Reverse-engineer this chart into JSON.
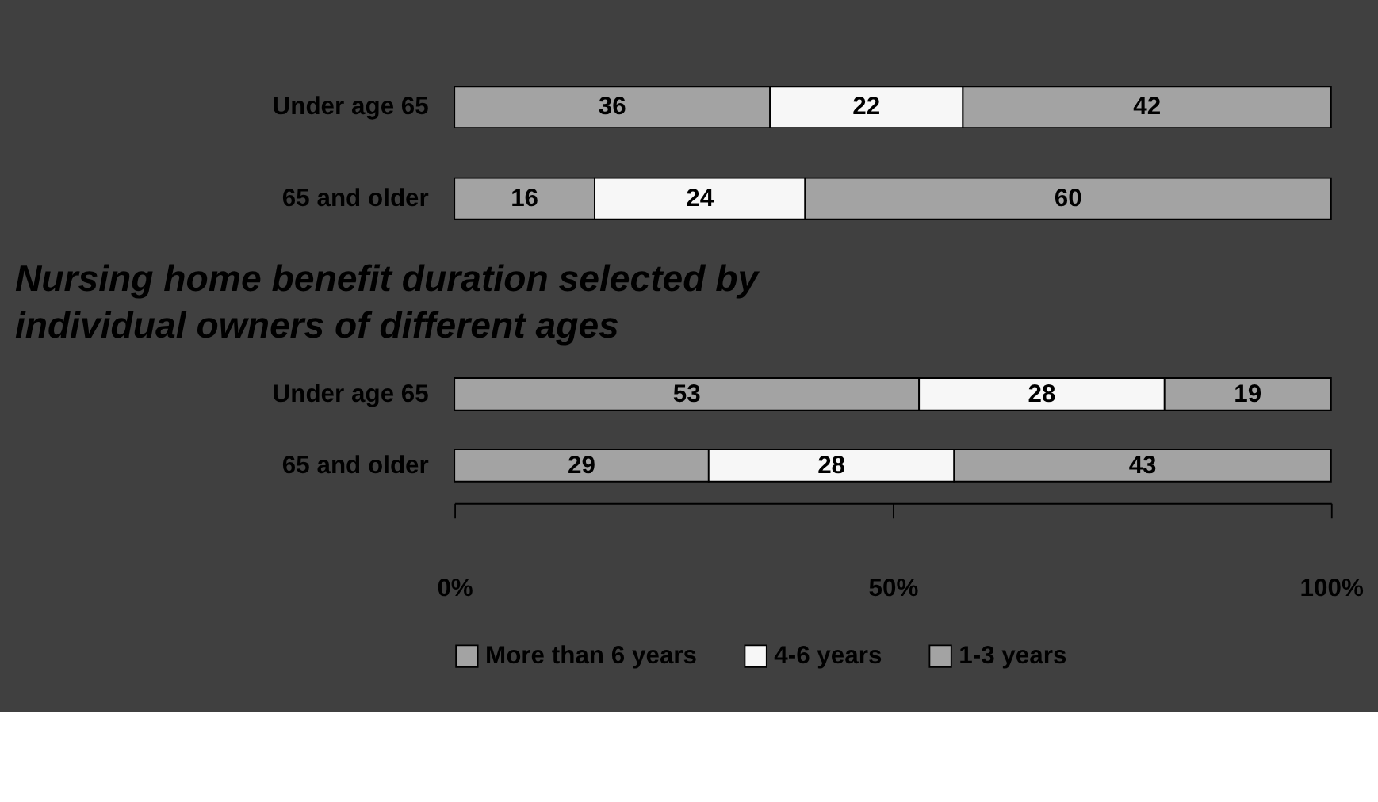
{
  "chart_data": [
    {
      "type": "bar",
      "orientation": "horizontal",
      "stacked": true,
      "categories": [
        "Under age 65",
        "65 and older"
      ],
      "series": [
        {
          "name": "More than 6 years",
          "color": "#a3a3a3",
          "values": [
            36,
            16
          ]
        },
        {
          "name": "4-6 years",
          "color": "#f7f7f7",
          "values": [
            22,
            24
          ]
        },
        {
          "name": "1-3 years",
          "color": "#a3a3a3",
          "values": [
            42,
            60
          ]
        }
      ],
      "xlim": [
        0,
        100
      ],
      "tick_labels": "y",
      "data_labels": true,
      "legend": "bottom"
    },
    {
      "type": "bar",
      "orientation": "horizontal",
      "stacked": true,
      "title": "Nursing home benefit duration selected by individual owners of different ages",
      "categories": [
        "Under age 65",
        "65 and older"
      ],
      "series": [
        {
          "name": "More than 6 years",
          "color": "#a3a3a3",
          "values": [
            53,
            29
          ]
        },
        {
          "name": "4-6 years",
          "color": "#f7f7f7",
          "values": [
            28,
            28
          ]
        },
        {
          "name": "1-3 years",
          "color": "#a3a3a3",
          "values": [
            19,
            43
          ]
        }
      ],
      "xlim": [
        0,
        100
      ],
      "xticks": [
        {
          "value": 0,
          "label": "0%"
        },
        {
          "value": 50,
          "label": "50%"
        },
        {
          "value": 100,
          "label": "100%"
        }
      ],
      "data_labels": true,
      "legend": "bottom",
      "grid": false
    }
  ]
}
